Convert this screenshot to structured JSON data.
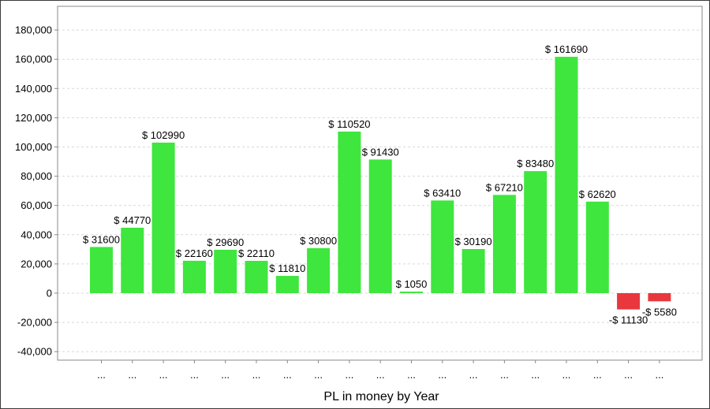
{
  "chart_data": {
    "type": "bar",
    "xlabel": "PL in money by Year",
    "ylabel": "",
    "ylim": [
      -45000,
      190000
    ],
    "yticks": [
      -40000,
      -20000,
      0,
      20000,
      40000,
      60000,
      80000,
      100000,
      120000,
      140000,
      160000,
      180000
    ],
    "ytick_labels": [
      "-40,000",
      "-20,000",
      "0",
      "20,000",
      "40,000",
      "60,000",
      "80,000",
      "100,000",
      "120,000",
      "140,000",
      "160,000",
      "180,000"
    ],
    "categories": [
      "...",
      "...",
      "...",
      "...",
      "...",
      "...",
      "...",
      "...",
      "...",
      "...",
      "...",
      "...",
      "...",
      "...",
      "...",
      "...",
      "...",
      "...",
      "..."
    ],
    "values": [
      31600,
      44770,
      102990,
      22160,
      29690,
      22110,
      11810,
      30800,
      110520,
      91430,
      1050,
      63410,
      30190,
      67210,
      83480,
      161690,
      62620,
      -11130,
      -5580
    ],
    "data_labels": [
      "$ 31600",
      "$ 44770",
      "$ 102990",
      "$ 22160",
      "$ 29690",
      "$ 22110",
      "$ 11810",
      "$ 30800",
      "$ 110520",
      "$ 91430",
      "$ 1050",
      "$ 63410",
      "$ 30190",
      "$ 67210",
      "$ 83480",
      "$ 161690",
      "$ 62620",
      "-$ 11130",
      "-$ 5580"
    ],
    "grid": true,
    "colors": {
      "positive": "#3ee63e",
      "negative": "#e8383d",
      "grid": "#d9d9d9",
      "axis": "#888888"
    }
  }
}
